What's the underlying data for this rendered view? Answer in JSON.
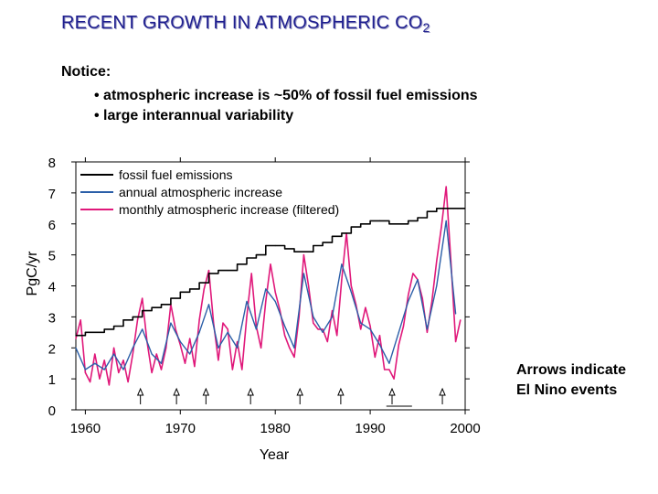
{
  "slide": {
    "title_main": "RECENT GROWTH IN ATMOSPHERIC CO",
    "title_sub": "2",
    "notice_label": "Notice:",
    "bullets": [
      "• atmospheric increase is ~50% of fossil fuel emissions",
      "• large interannual variability"
    ],
    "arrows_note": [
      "Arrows indicate",
      "El Nino events"
    ]
  },
  "colors": {
    "fossil": "#000000",
    "annual": "#2b5fa8",
    "monthly": "#e0187a",
    "title": "#1f1f8f"
  },
  "chart_data": {
    "type": "line",
    "xlabel": "Year",
    "ylabel": "PgC/yr",
    "xlim": [
      1959,
      2000
    ],
    "ylim": [
      0,
      8
    ],
    "xticks": [
      1960,
      1970,
      1980,
      1990,
      2000
    ],
    "yticks": [
      0,
      1,
      2,
      3,
      4,
      5,
      6,
      7,
      8
    ],
    "legend_position": "top-left",
    "series": [
      {
        "name": "fossil fuel emissions",
        "color_key": "fossil",
        "step": true,
        "x": [
          1959,
          1960,
          1961,
          1962,
          1963,
          1964,
          1965,
          1966,
          1967,
          1968,
          1969,
          1970,
          1971,
          1972,
          1973,
          1974,
          1975,
          1976,
          1977,
          1978,
          1979,
          1980,
          1981,
          1982,
          1983,
          1984,
          1985,
          1986,
          1987,
          1988,
          1989,
          1990,
          1991,
          1992,
          1993,
          1994,
          1995,
          1996,
          1997,
          1998,
          1999
        ],
        "y": [
          2.4,
          2.5,
          2.5,
          2.6,
          2.7,
          2.9,
          3.0,
          3.2,
          3.3,
          3.4,
          3.6,
          3.8,
          3.9,
          4.1,
          4.4,
          4.5,
          4.5,
          4.7,
          4.9,
          5.0,
          5.3,
          5.3,
          5.2,
          5.1,
          5.1,
          5.3,
          5.4,
          5.6,
          5.7,
          5.9,
          6.0,
          6.1,
          6.1,
          6.0,
          6.0,
          6.1,
          6.2,
          6.4,
          6.5,
          6.5,
          6.5
        ]
      },
      {
        "name": "annual atmospheric increase",
        "color_key": "annual",
        "step": false,
        "x": [
          1959,
          1960,
          1961,
          1962,
          1963,
          1964,
          1965,
          1966,
          1967,
          1968,
          1969,
          1970,
          1971,
          1972,
          1973,
          1974,
          1975,
          1976,
          1977,
          1978,
          1979,
          1980,
          1981,
          1982,
          1983,
          1984,
          1985,
          1986,
          1987,
          1988,
          1989,
          1990,
          1991,
          1992,
          1993,
          1994,
          1995,
          1996,
          1997,
          1998,
          1999
        ],
        "y": [
          2.0,
          1.3,
          1.5,
          1.3,
          1.8,
          1.3,
          2.0,
          2.6,
          1.8,
          1.5,
          2.8,
          2.2,
          1.8,
          2.5,
          3.4,
          2.0,
          2.5,
          2.0,
          3.5,
          2.6,
          3.9,
          3.5,
          2.7,
          2.0,
          4.4,
          3.0,
          2.5,
          3.0,
          4.7,
          3.8,
          2.8,
          2.6,
          2.1,
          1.5,
          2.5,
          3.5,
          4.2,
          2.6,
          4.0,
          6.1,
          3.1
        ]
      },
      {
        "name": "monthly atmospheric increase (filtered)",
        "color_key": "monthly",
        "step": false,
        "x": [
          1959.0,
          1959.5,
          1960.0,
          1960.5,
          1961.0,
          1961.5,
          1962.0,
          1962.5,
          1963.0,
          1963.5,
          1964.0,
          1964.5,
          1965.0,
          1965.5,
          1966.0,
          1966.5,
          1967.0,
          1967.5,
          1968.0,
          1968.5,
          1969.0,
          1969.5,
          1970.0,
          1970.5,
          1971.0,
          1971.5,
          1972.0,
          1972.5,
          1973.0,
          1973.5,
          1974.0,
          1974.5,
          1975.0,
          1975.5,
          1976.0,
          1976.5,
          1977.0,
          1977.5,
          1978.0,
          1978.5,
          1979.0,
          1979.5,
          1980.0,
          1980.5,
          1981.0,
          1981.5,
          1982.0,
          1982.5,
          1983.0,
          1983.5,
          1984.0,
          1984.5,
          1985.0,
          1985.5,
          1986.0,
          1986.5,
          1987.0,
          1987.5,
          1988.0,
          1988.5,
          1989.0,
          1989.5,
          1990.0,
          1990.5,
          1991.0,
          1991.5,
          1992.0,
          1992.5,
          1993.0,
          1993.5,
          1994.0,
          1994.5,
          1995.0,
          1995.5,
          1996.0,
          1996.5,
          1997.0,
          1997.5,
          1998.0,
          1998.5,
          1999.0,
          1999.5
        ],
        "y": [
          2.3,
          2.9,
          1.2,
          0.9,
          1.8,
          1.0,
          1.6,
          0.8,
          2.0,
          1.2,
          1.6,
          0.9,
          1.8,
          2.9,
          3.6,
          2.2,
          1.2,
          1.8,
          1.3,
          2.0,
          3.4,
          2.6,
          2.1,
          1.5,
          2.3,
          1.4,
          2.9,
          3.9,
          4.5,
          2.8,
          1.6,
          2.8,
          2.6,
          1.3,
          2.2,
          1.3,
          3.0,
          4.4,
          2.7,
          2.0,
          3.5,
          4.7,
          3.8,
          3.2,
          2.4,
          2.0,
          1.7,
          3.0,
          5.0,
          4.0,
          2.8,
          2.6,
          2.6,
          2.2,
          3.2,
          2.4,
          4.2,
          5.7,
          4.0,
          3.4,
          2.6,
          3.3,
          2.7,
          1.7,
          2.4,
          1.3,
          1.3,
          1.0,
          2.1,
          2.7,
          3.7,
          4.4,
          4.2,
          3.6,
          2.5,
          3.5,
          4.8,
          5.9,
          7.2,
          4.8,
          2.2,
          2.9
        ]
      }
    ],
    "el_nino_events": [
      1965.8,
      1969.6,
      1972.7,
      1977.4,
      1982.6,
      1986.9,
      1992.3,
      1997.6
    ],
    "el_nino_segment": [
      1991.7,
      1994.4
    ]
  }
}
